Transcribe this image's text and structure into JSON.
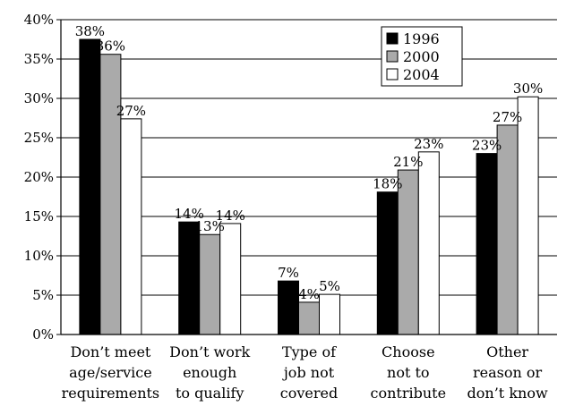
{
  "chart_data": {
    "type": "bar",
    "title": "",
    "xlabel": "",
    "ylabel": "",
    "ylim": [
      0,
      40
    ],
    "yticks": [
      "0%",
      "5%",
      "10%",
      "15%",
      "20%",
      "25%",
      "30%",
      "35%",
      "40%"
    ],
    "grid": true,
    "legend_position": "top-right",
    "categories": [
      [
        "Don’t meet",
        "age/service",
        "requirements"
      ],
      [
        "Don’t work",
        "enough",
        "to qualify"
      ],
      [
        "Type of",
        "job not",
        "covered"
      ],
      [
        "Choose",
        "not to",
        "contribute"
      ],
      [
        "Other",
        "reason or",
        "don’t know"
      ]
    ],
    "series": [
      {
        "name": "1996",
        "color": "#000000",
        "values": [
          37.5,
          14.3,
          6.8,
          18.1,
          23.0
        ],
        "labels": [
          "38%",
          "14%",
          "7%",
          "18%",
          "23%"
        ]
      },
      {
        "name": "2000",
        "color": "#aaaaaa",
        "values": [
          35.6,
          12.7,
          4.1,
          20.9,
          26.6
        ],
        "labels": [
          "36%",
          "13%",
          "4%",
          "21%",
          "27%"
        ]
      },
      {
        "name": "2004",
        "color": "#ffffff",
        "values": [
          27.4,
          14.1,
          5.1,
          23.2,
          30.2
        ],
        "labels": [
          "27%",
          "14%",
          "5%",
          "23%",
          "30%"
        ]
      }
    ]
  }
}
